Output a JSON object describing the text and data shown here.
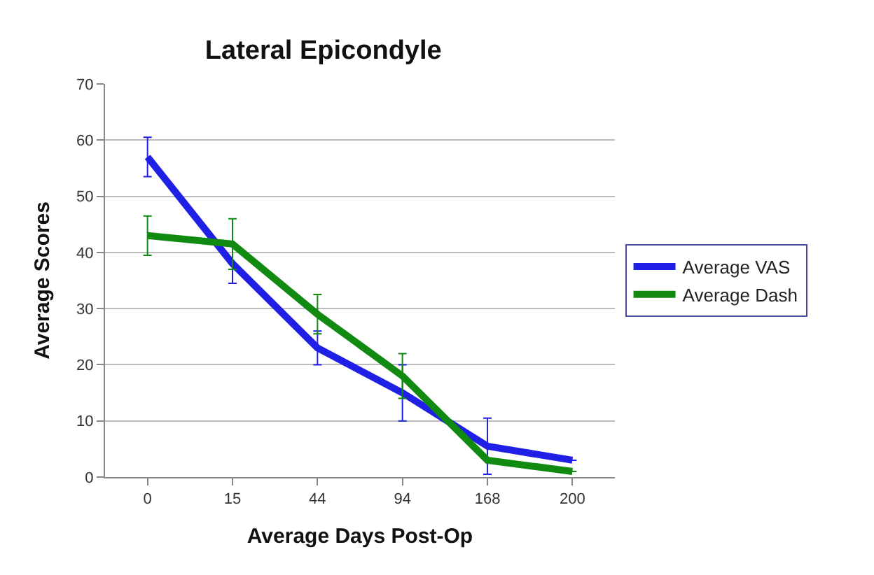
{
  "chart_data": {
    "type": "line",
    "title": "Lateral Epicondyle",
    "xlabel": "Average Days Post-Op",
    "ylabel": "Average Scores",
    "categories": [
      "0",
      "15",
      "44",
      "94",
      "168",
      "200"
    ],
    "series": [
      {
        "name": "Average VAS",
        "color": "#1f1fe6",
        "values": [
          57,
          38,
          23,
          15,
          5.5,
          3
        ],
        "errors": [
          3.5,
          3.5,
          3,
          5,
          5,
          null
        ]
      },
      {
        "name": "Average Dash",
        "color": "#118a11",
        "values": [
          43,
          41.5,
          29,
          18,
          3,
          1
        ],
        "errors": [
          3.5,
          4.5,
          3.5,
          4,
          null,
          null
        ]
      }
    ],
    "ylim": [
      0,
      70
    ],
    "yticks": [
      0,
      10,
      20,
      30,
      40,
      50,
      60,
      70
    ],
    "grid": "y",
    "legend": "right",
    "marker": "none",
    "line_style": "solid"
  }
}
